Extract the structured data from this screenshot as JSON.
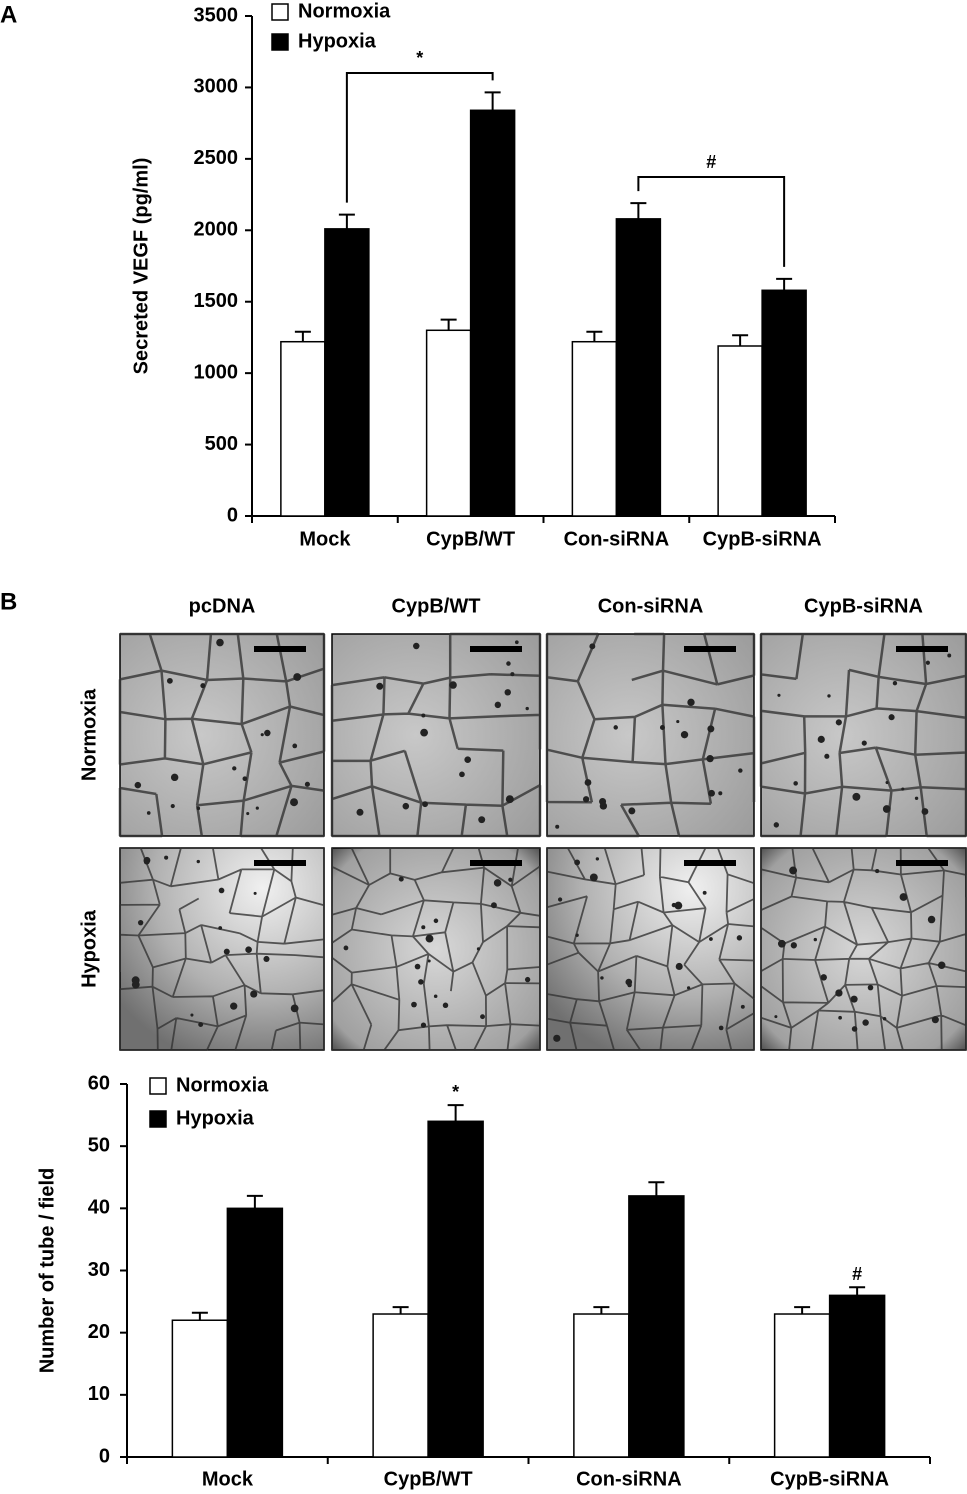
{
  "panel_labels": [
    "A",
    "B"
  ],
  "micrographs": {
    "columns": [
      "pcDNA",
      "CypB/WT",
      "Con-siRNA",
      "CypB-siRNA"
    ],
    "rows": [
      "Normoxia",
      "Hypoxia"
    ]
  },
  "chart_data": [
    {
      "type": "bar",
      "y_label": "Secreted VEGF (pg/ml)",
      "categories": [
        "Mock",
        "CypB/WT",
        "Con-siRNA",
        "CypB-siRNA"
      ],
      "series": [
        {
          "name": "Normoxia",
          "color": "#ffffff",
          "values": [
            1220,
            1300,
            1220,
            1190
          ],
          "errors": [
            70,
            75,
            70,
            75
          ]
        },
        {
          "name": "Hypoxia",
          "color": "#000000",
          "values": [
            2010,
            2840,
            2080,
            1580
          ],
          "errors": [
            100,
            125,
            110,
            80
          ]
        }
      ],
      "ylim": [
        0,
        3500
      ],
      "yticks": [
        0,
        500,
        1000,
        1500,
        2000,
        2500,
        3000,
        3500
      ],
      "annotations": [
        "*",
        "#"
      ]
    },
    {
      "type": "bar",
      "y_label": "Number of tube / field",
      "categories": [
        "Mock",
        "CypB/WT",
        "Con-siRNA",
        "CypB-siRNA"
      ],
      "series": [
        {
          "name": "Normoxia",
          "color": "#ffffff",
          "values": [
            22,
            23,
            23,
            23
          ],
          "errors": [
            1.2,
            1.1,
            1.1,
            1.1
          ]
        },
        {
          "name": "Hypoxia",
          "color": "#000000",
          "values": [
            40,
            54,
            42,
            26
          ],
          "errors": [
            2,
            2.6,
            2.2,
            1.3
          ]
        }
      ],
      "ylim": [
        0,
        60
      ],
      "yticks": [
        0,
        10,
        20,
        30,
        40,
        50,
        60
      ],
      "annotations": [
        "*",
        "#"
      ]
    }
  ]
}
